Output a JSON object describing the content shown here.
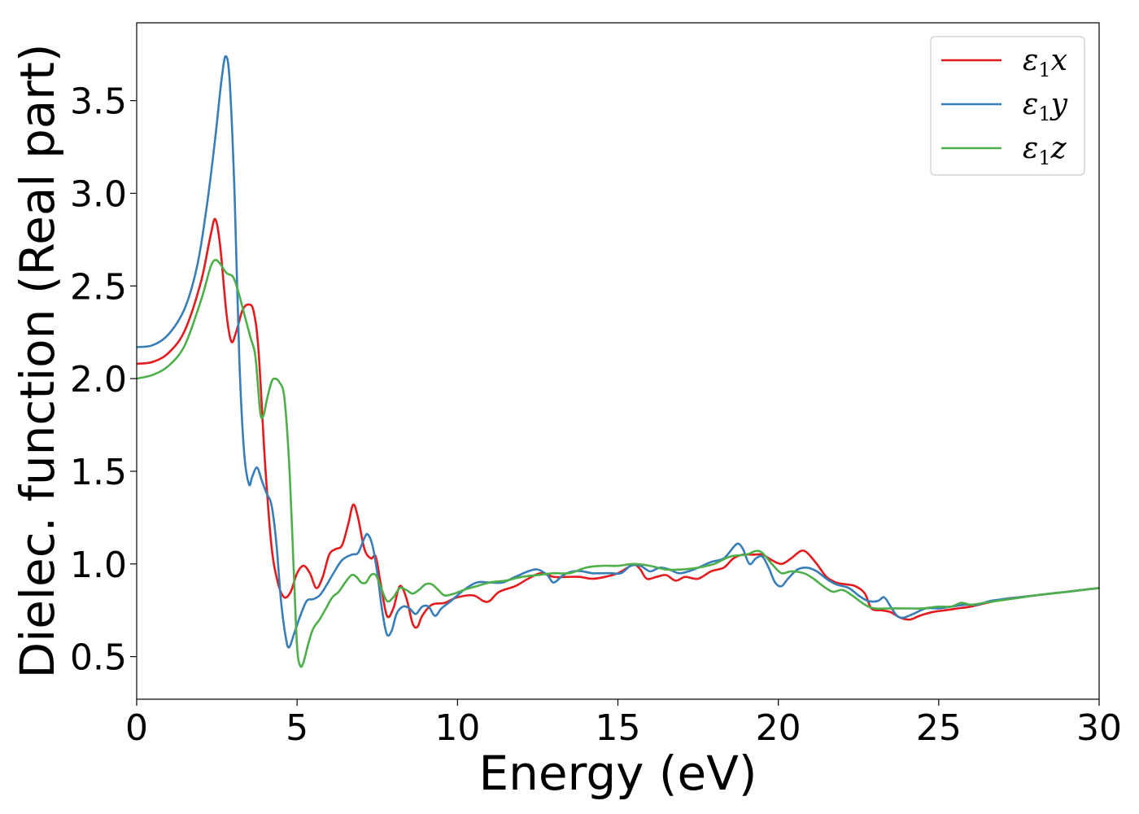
{
  "chart_data": {
    "type": "line",
    "xlabel": "Energy (eV)",
    "ylabel": "Dielec. function (Real part)",
    "xlim": [
      0,
      30
    ],
    "ylim": [
      0.27,
      3.92
    ],
    "xticks": [
      0,
      5,
      10,
      15,
      20,
      25,
      30
    ],
    "yticks": [
      0.5,
      1.0,
      1.5,
      2.0,
      2.5,
      3.0,
      3.5
    ],
    "xtick_labels": [
      "0",
      "5",
      "10",
      "15",
      "20",
      "25",
      "30"
    ],
    "ytick_labels": [
      "0.5",
      "1.0",
      "1.5",
      "2.0",
      "2.5",
      "3.0",
      "3.5"
    ],
    "grid": false,
    "legend_position": "top-right",
    "series": [
      {
        "name": "ε1x",
        "legend_base": "ε",
        "legend_sub": "1",
        "legend_suffix": "x",
        "color": "#e41a1c",
        "points": [
          [
            0,
            2.08
          ],
          [
            0.5,
            2.09
          ],
          [
            1.0,
            2.14
          ],
          [
            1.5,
            2.26
          ],
          [
            2.0,
            2.52
          ],
          [
            2.3,
            2.77
          ],
          [
            2.45,
            2.86
          ],
          [
            2.6,
            2.72
          ],
          [
            2.8,
            2.35
          ],
          [
            2.95,
            2.2
          ],
          [
            3.1,
            2.25
          ],
          [
            3.3,
            2.37
          ],
          [
            3.5,
            2.4
          ],
          [
            3.65,
            2.36
          ],
          [
            3.8,
            2.15
          ],
          [
            4.0,
            1.55
          ],
          [
            4.2,
            1.1
          ],
          [
            4.4,
            0.9
          ],
          [
            4.6,
            0.82
          ],
          [
            4.8,
            0.85
          ],
          [
            5.0,
            0.95
          ],
          [
            5.2,
            0.99
          ],
          [
            5.4,
            0.95
          ],
          [
            5.6,
            0.87
          ],
          [
            5.8,
            0.93
          ],
          [
            6.0,
            1.05
          ],
          [
            6.2,
            1.08
          ],
          [
            6.4,
            1.1
          ],
          [
            6.6,
            1.22
          ],
          [
            6.75,
            1.32
          ],
          [
            6.9,
            1.25
          ],
          [
            7.1,
            1.08
          ],
          [
            7.3,
            1.03
          ],
          [
            7.45,
            1.04
          ],
          [
            7.6,
            0.9
          ],
          [
            7.8,
            0.72
          ],
          [
            8.0,
            0.76
          ],
          [
            8.2,
            0.88
          ],
          [
            8.4,
            0.82
          ],
          [
            8.6,
            0.68
          ],
          [
            8.75,
            0.66
          ],
          [
            8.9,
            0.72
          ],
          [
            9.2,
            0.78
          ],
          [
            9.6,
            0.79
          ],
          [
            10.0,
            0.82
          ],
          [
            10.5,
            0.83
          ],
          [
            10.8,
            0.8
          ],
          [
            11.0,
            0.8
          ],
          [
            11.3,
            0.85
          ],
          [
            11.8,
            0.88
          ],
          [
            12.2,
            0.92
          ],
          [
            12.6,
            0.95
          ],
          [
            13.0,
            0.93
          ],
          [
            13.4,
            0.93
          ],
          [
            13.8,
            0.93
          ],
          [
            14.2,
            0.92
          ],
          [
            14.6,
            0.93
          ],
          [
            15.0,
            0.95
          ],
          [
            15.3,
            0.98
          ],
          [
            15.5,
            1.0
          ],
          [
            15.7,
            0.97
          ],
          [
            15.9,
            0.92
          ],
          [
            16.2,
            0.93
          ],
          [
            16.5,
            0.94
          ],
          [
            16.8,
            0.91
          ],
          [
            17.1,
            0.93
          ],
          [
            17.5,
            0.92
          ],
          [
            17.9,
            0.96
          ],
          [
            18.3,
            0.98
          ],
          [
            18.6,
            1.03
          ],
          [
            18.9,
            1.05
          ],
          [
            19.2,
            1.05
          ],
          [
            19.5,
            1.05
          ],
          [
            19.8,
            1.02
          ],
          [
            20.1,
            1.0
          ],
          [
            20.4,
            1.03
          ],
          [
            20.7,
            1.07
          ],
          [
            20.9,
            1.06
          ],
          [
            21.2,
            1.0
          ],
          [
            21.5,
            0.93
          ],
          [
            21.8,
            0.9
          ],
          [
            22.1,
            0.89
          ],
          [
            22.4,
            0.88
          ],
          [
            22.7,
            0.84
          ],
          [
            22.9,
            0.76
          ],
          [
            23.2,
            0.75
          ],
          [
            23.5,
            0.74
          ],
          [
            23.8,
            0.71
          ],
          [
            24.1,
            0.7
          ],
          [
            24.4,
            0.72
          ],
          [
            24.8,
            0.74
          ],
          [
            25.2,
            0.75
          ],
          [
            25.6,
            0.76
          ],
          [
            26.0,
            0.77
          ],
          [
            26.5,
            0.79
          ],
          [
            27.0,
            0.81
          ],
          [
            27.5,
            0.82
          ],
          [
            28.0,
            0.83
          ],
          [
            28.5,
            0.84
          ],
          [
            29.0,
            0.85
          ],
          [
            29.5,
            0.86
          ],
          [
            30.0,
            0.87
          ]
        ]
      },
      {
        "name": "ε1y",
        "legend_base": "ε",
        "legend_sub": "1",
        "legend_suffix": "y",
        "color": "#377eb8",
        "points": [
          [
            0,
            2.17
          ],
          [
            0.5,
            2.18
          ],
          [
            1.0,
            2.24
          ],
          [
            1.5,
            2.38
          ],
          [
            1.9,
            2.62
          ],
          [
            2.2,
            2.95
          ],
          [
            2.45,
            3.3
          ],
          [
            2.65,
            3.62
          ],
          [
            2.78,
            3.74
          ],
          [
            2.9,
            3.6
          ],
          [
            3.05,
            3.0
          ],
          [
            3.2,
            2.1
          ],
          [
            3.35,
            1.6
          ],
          [
            3.5,
            1.43
          ],
          [
            3.6,
            1.47
          ],
          [
            3.75,
            1.52
          ],
          [
            3.9,
            1.45
          ],
          [
            4.05,
            1.38
          ],
          [
            4.2,
            1.32
          ],
          [
            4.35,
            1.12
          ],
          [
            4.5,
            0.8
          ],
          [
            4.65,
            0.6
          ],
          [
            4.75,
            0.55
          ],
          [
            4.9,
            0.62
          ],
          [
            5.1,
            0.72
          ],
          [
            5.3,
            0.8
          ],
          [
            5.5,
            0.81
          ],
          [
            5.7,
            0.83
          ],
          [
            5.9,
            0.88
          ],
          [
            6.1,
            0.94
          ],
          [
            6.4,
            1.02
          ],
          [
            6.7,
            1.05
          ],
          [
            6.9,
            1.06
          ],
          [
            7.1,
            1.14
          ],
          [
            7.2,
            1.16
          ],
          [
            7.35,
            1.1
          ],
          [
            7.5,
            0.95
          ],
          [
            7.65,
            0.75
          ],
          [
            7.8,
            0.62
          ],
          [
            7.95,
            0.64
          ],
          [
            8.1,
            0.73
          ],
          [
            8.3,
            0.77
          ],
          [
            8.5,
            0.76
          ],
          [
            8.7,
            0.73
          ],
          [
            8.9,
            0.77
          ],
          [
            9.1,
            0.77
          ],
          [
            9.3,
            0.72
          ],
          [
            9.5,
            0.76
          ],
          [
            9.8,
            0.8
          ],
          [
            10.2,
            0.86
          ],
          [
            10.6,
            0.9
          ],
          [
            11.0,
            0.9
          ],
          [
            11.4,
            0.9
          ],
          [
            11.8,
            0.93
          ],
          [
            12.2,
            0.96
          ],
          [
            12.5,
            0.97
          ],
          [
            12.8,
            0.94
          ],
          [
            13.0,
            0.9
          ],
          [
            13.3,
            0.94
          ],
          [
            13.6,
            0.96
          ],
          [
            13.9,
            0.96
          ],
          [
            14.2,
            0.95
          ],
          [
            14.5,
            0.95
          ],
          [
            14.8,
            0.95
          ],
          [
            15.1,
            0.95
          ],
          [
            15.4,
            0.99
          ],
          [
            15.7,
            0.99
          ],
          [
            16.0,
            0.96
          ],
          [
            16.3,
            0.98
          ],
          [
            16.6,
            0.97
          ],
          [
            16.9,
            0.95
          ],
          [
            17.2,
            0.96
          ],
          [
            17.5,
            0.98
          ],
          [
            17.9,
            1.01
          ],
          [
            18.3,
            1.03
          ],
          [
            18.6,
            1.09
          ],
          [
            18.75,
            1.11
          ],
          [
            18.9,
            1.08
          ],
          [
            19.1,
            1.0
          ],
          [
            19.3,
            1.03
          ],
          [
            19.5,
            1.04
          ],
          [
            19.7,
            0.98
          ],
          [
            19.9,
            0.9
          ],
          [
            20.1,
            0.88
          ],
          [
            20.3,
            0.92
          ],
          [
            20.6,
            0.97
          ],
          [
            20.9,
            0.98
          ],
          [
            21.2,
            0.96
          ],
          [
            21.5,
            0.92
          ],
          [
            21.8,
            0.89
          ],
          [
            22.2,
            0.87
          ],
          [
            22.5,
            0.83
          ],
          [
            22.8,
            0.8
          ],
          [
            23.1,
            0.8
          ],
          [
            23.3,
            0.82
          ],
          [
            23.5,
            0.77
          ],
          [
            23.7,
            0.72
          ],
          [
            23.9,
            0.71
          ],
          [
            24.2,
            0.73
          ],
          [
            24.6,
            0.76
          ],
          [
            25.0,
            0.76
          ],
          [
            25.4,
            0.77
          ],
          [
            25.8,
            0.78
          ],
          [
            26.2,
            0.78
          ],
          [
            26.6,
            0.8
          ],
          [
            27.0,
            0.81
          ],
          [
            27.5,
            0.82
          ],
          [
            28.0,
            0.83
          ],
          [
            28.5,
            0.84
          ],
          [
            29.0,
            0.85
          ],
          [
            29.5,
            0.86
          ],
          [
            30.0,
            0.87
          ]
        ]
      },
      {
        "name": "ε1z",
        "legend_base": "ε",
        "legend_sub": "1",
        "legend_suffix": "z",
        "color": "#4daf4a",
        "points": [
          [
            0,
            2.0
          ],
          [
            0.5,
            2.02
          ],
          [
            1.0,
            2.07
          ],
          [
            1.5,
            2.18
          ],
          [
            2.0,
            2.42
          ],
          [
            2.3,
            2.6
          ],
          [
            2.45,
            2.64
          ],
          [
            2.6,
            2.62
          ],
          [
            2.8,
            2.57
          ],
          [
            3.0,
            2.55
          ],
          [
            3.15,
            2.48
          ],
          [
            3.35,
            2.35
          ],
          [
            3.55,
            2.22
          ],
          [
            3.7,
            2.12
          ],
          [
            3.85,
            1.82
          ],
          [
            3.95,
            1.8
          ],
          [
            4.05,
            1.88
          ],
          [
            4.2,
            1.98
          ],
          [
            4.3,
            2.0
          ],
          [
            4.45,
            1.98
          ],
          [
            4.6,
            1.9
          ],
          [
            4.75,
            1.55
          ],
          [
            4.9,
            0.95
          ],
          [
            5.0,
            0.55
          ],
          [
            5.1,
            0.45
          ],
          [
            5.2,
            0.47
          ],
          [
            5.35,
            0.57
          ],
          [
            5.5,
            0.65
          ],
          [
            5.7,
            0.7
          ],
          [
            5.9,
            0.76
          ],
          [
            6.1,
            0.82
          ],
          [
            6.3,
            0.85
          ],
          [
            6.5,
            0.9
          ],
          [
            6.7,
            0.94
          ],
          [
            6.85,
            0.93
          ],
          [
            7.0,
            0.9
          ],
          [
            7.15,
            0.9
          ],
          [
            7.3,
            0.94
          ],
          [
            7.45,
            0.94
          ],
          [
            7.6,
            0.88
          ],
          [
            7.8,
            0.8
          ],
          [
            8.0,
            0.82
          ],
          [
            8.2,
            0.87
          ],
          [
            8.4,
            0.86
          ],
          [
            8.6,
            0.84
          ],
          [
            8.8,
            0.86
          ],
          [
            9.0,
            0.89
          ],
          [
            9.2,
            0.89
          ],
          [
            9.4,
            0.86
          ],
          [
            9.6,
            0.83
          ],
          [
            9.9,
            0.84
          ],
          [
            10.2,
            0.86
          ],
          [
            10.6,
            0.88
          ],
          [
            11.0,
            0.9
          ],
          [
            11.5,
            0.91
          ],
          [
            12.0,
            0.93
          ],
          [
            12.5,
            0.94
          ],
          [
            13.0,
            0.95
          ],
          [
            13.5,
            0.95
          ],
          [
            14.0,
            0.98
          ],
          [
            14.5,
            0.99
          ],
          [
            15.0,
            0.99
          ],
          [
            15.5,
            1.0
          ],
          [
            16.0,
            0.99
          ],
          [
            16.5,
            0.97
          ],
          [
            17.0,
            0.97
          ],
          [
            17.5,
            0.98
          ],
          [
            18.0,
            1.0
          ],
          [
            18.5,
            1.04
          ],
          [
            19.0,
            1.05
          ],
          [
            19.3,
            1.07
          ],
          [
            19.5,
            1.06
          ],
          [
            19.8,
            1.0
          ],
          [
            20.1,
            0.95
          ],
          [
            20.4,
            0.96
          ],
          [
            20.8,
            0.95
          ],
          [
            21.1,
            0.92
          ],
          [
            21.4,
            0.88
          ],
          [
            21.7,
            0.85
          ],
          [
            22.0,
            0.86
          ],
          [
            22.3,
            0.83
          ],
          [
            22.7,
            0.78
          ],
          [
            23.0,
            0.76
          ],
          [
            23.5,
            0.76
          ],
          [
            24.0,
            0.76
          ],
          [
            24.5,
            0.76
          ],
          [
            25.0,
            0.77
          ],
          [
            25.4,
            0.77
          ],
          [
            25.7,
            0.79
          ],
          [
            26.0,
            0.78
          ],
          [
            26.4,
            0.79
          ],
          [
            26.8,
            0.8
          ],
          [
            27.2,
            0.81
          ],
          [
            27.6,
            0.82
          ],
          [
            28.0,
            0.83
          ],
          [
            28.5,
            0.84
          ],
          [
            29.0,
            0.85
          ],
          [
            29.5,
            0.86
          ],
          [
            30.0,
            0.87
          ]
        ]
      }
    ]
  }
}
